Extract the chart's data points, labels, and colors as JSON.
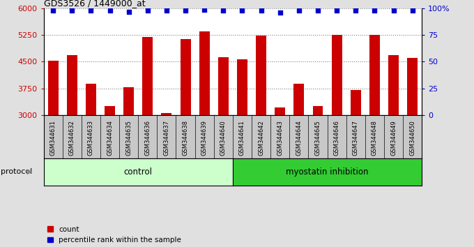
{
  "title": "GDS3526 / 1449000_at",
  "samples": [
    "GSM344631",
    "GSM344632",
    "GSM344633",
    "GSM344634",
    "GSM344635",
    "GSM344636",
    "GSM344637",
    "GSM344638",
    "GSM344639",
    "GSM344640",
    "GSM344641",
    "GSM344642",
    "GSM344643",
    "GSM344644",
    "GSM344645",
    "GSM344646",
    "GSM344647",
    "GSM344648",
    "GSM344649",
    "GSM344650"
  ],
  "counts": [
    4520,
    4680,
    3880,
    3250,
    3780,
    5200,
    3060,
    5150,
    5350,
    4620,
    4570,
    5230,
    3210,
    3870,
    3250,
    5250,
    3700,
    5250,
    4680,
    4600
  ],
  "percentile_ranks": [
    98,
    98,
    98,
    98,
    97,
    98,
    98,
    98,
    99,
    98,
    98,
    98,
    96,
    98,
    98,
    98,
    98,
    98,
    98,
    98
  ],
  "control_count": 10,
  "ylim_left": [
    3000,
    6000
  ],
  "ylim_right": [
    0,
    100
  ],
  "yticks_left": [
    3000,
    3750,
    4500,
    5250,
    6000
  ],
  "yticks_right": [
    0,
    25,
    50,
    75,
    100
  ],
  "bar_color": "#cc0000",
  "dot_color": "#0000cc",
  "control_label": "control",
  "treatment_label": "myostatin inhibition",
  "control_bg": "#ccffcc",
  "treatment_bg": "#33cc33",
  "legend_count_label": "count",
  "legend_pct_label": "percentile rank within the sample",
  "protocol_label": "protocol",
  "fig_bg": "#e0e0e0",
  "plot_bg": "#ffffff",
  "xlabel_bg": "#c8c8c8"
}
